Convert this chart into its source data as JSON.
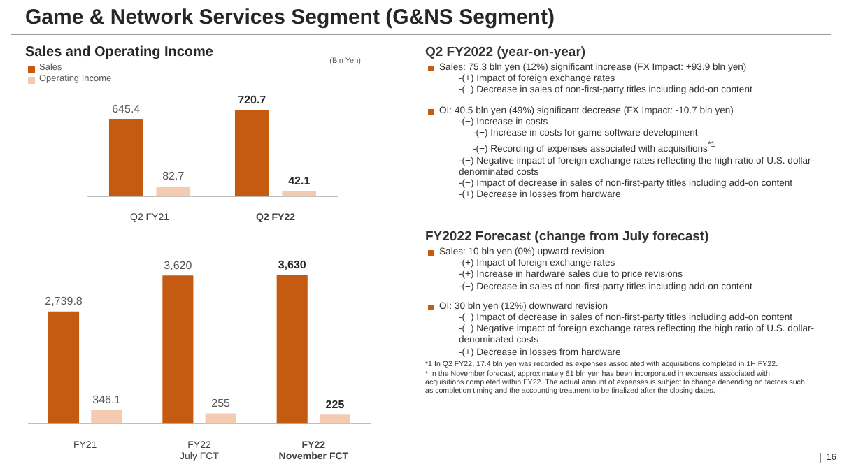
{
  "chart_data": [
    {
      "type": "bar",
      "title": "Game & Network Services Segment (G&NS Segment)",
      "subtitle": "Sales and Operating Income",
      "categories": [
        "Q2 FY21",
        "Q2 FY22"
      ],
      "series": [
        {
          "name": "Sales",
          "color": "#c55a11",
          "values": [
            645.4,
            720.7
          ]
        },
        {
          "name": "Operating Income",
          "color": "#f4cbb0",
          "values": [
            82.7,
            42.1
          ]
        }
      ],
      "data_labels": true,
      "legend": "top left",
      "annotations": [
        "(Bln Yen)"
      ]
    },
    {
      "type": "bar",
      "categories": [
        "FY21",
        "FY22 July FCT",
        "FY22 November FCT"
      ],
      "series": [
        {
          "color": "#c55a11",
          "values": [
            2739.8,
            3620,
            3630
          ],
          "value_labels": [
            "2,739.8",
            "3,620",
            "3,630"
          ]
        },
        {
          "color": "#f4cbb0",
          "values": [
            346.1,
            255,
            225
          ],
          "value_labels": [
            "346.1",
            "255",
            "225"
          ]
        }
      ]
    },
    {
      "type": "other",
      "title": "Q2 FY2022 (year-on-year)",
      "annotations": [
        "Sales: 75.3 bln yen (12%) significant increase (FX Impact: +93.9 bln yen)",
        "-(+) Impact of foreign exchange rates",
        "-(−) Decrease in sales of non-first-party titles including add-on content",
        "OI: 40.5 bln yen (49%) significant decrease (FX Impact: -10.7 bln yen)",
        "-(−) Increase in costs",
        "-(−) Increase in costs for game software development",
        "-(−) Recording of expenses associated with acquisitions$^{*1}$",
        "-(−) Negative impact of foreign exchange rates reflecting the high ratio of U.S. dollar-denominated costs",
        "-(−) Impact of decrease in sales of non-first-party titles including add-on content",
        "-(+) Decrease in losses from hardware"
      ]
    },
    {
      "type": "other",
      "title": "FY2022 Forecast (change from July forecast)",
      "annotations": [
        "Sales: 10 bln yen (0%) upward revision",
        "-(+) Impact of foreign exchange rates",
        "-(+) Increase in hardware sales due to price revisions",
        "-(−) Decrease in sales of non-first-party titles including add-on content",
        "OI: 30 bln yen (12%) downward revision",
        "-(−) Impact of decrease in sales of non-first-party titles including add-on content",
        "-(−) Negative impact of foreign exchange rates reflecting the high ratio of U.S. dollar-denominated costs",
        "-(+) Decrease in losses from hardware",
        "*1 In Q2 FY22, 17.4 bln yen was recorded as expenses associated with acquisitions completed in 1H FY22.",
        "* In the November forecast, approximately 61 bln yen has been incorporated in expenses associated with acquisitions completed within FY22. The actual amount of expenses is subject to change depending on factors such as completion timing and the accounting treatment to be finalized after the closing dates.",
        "16"
      ]
    }
  ]
}
